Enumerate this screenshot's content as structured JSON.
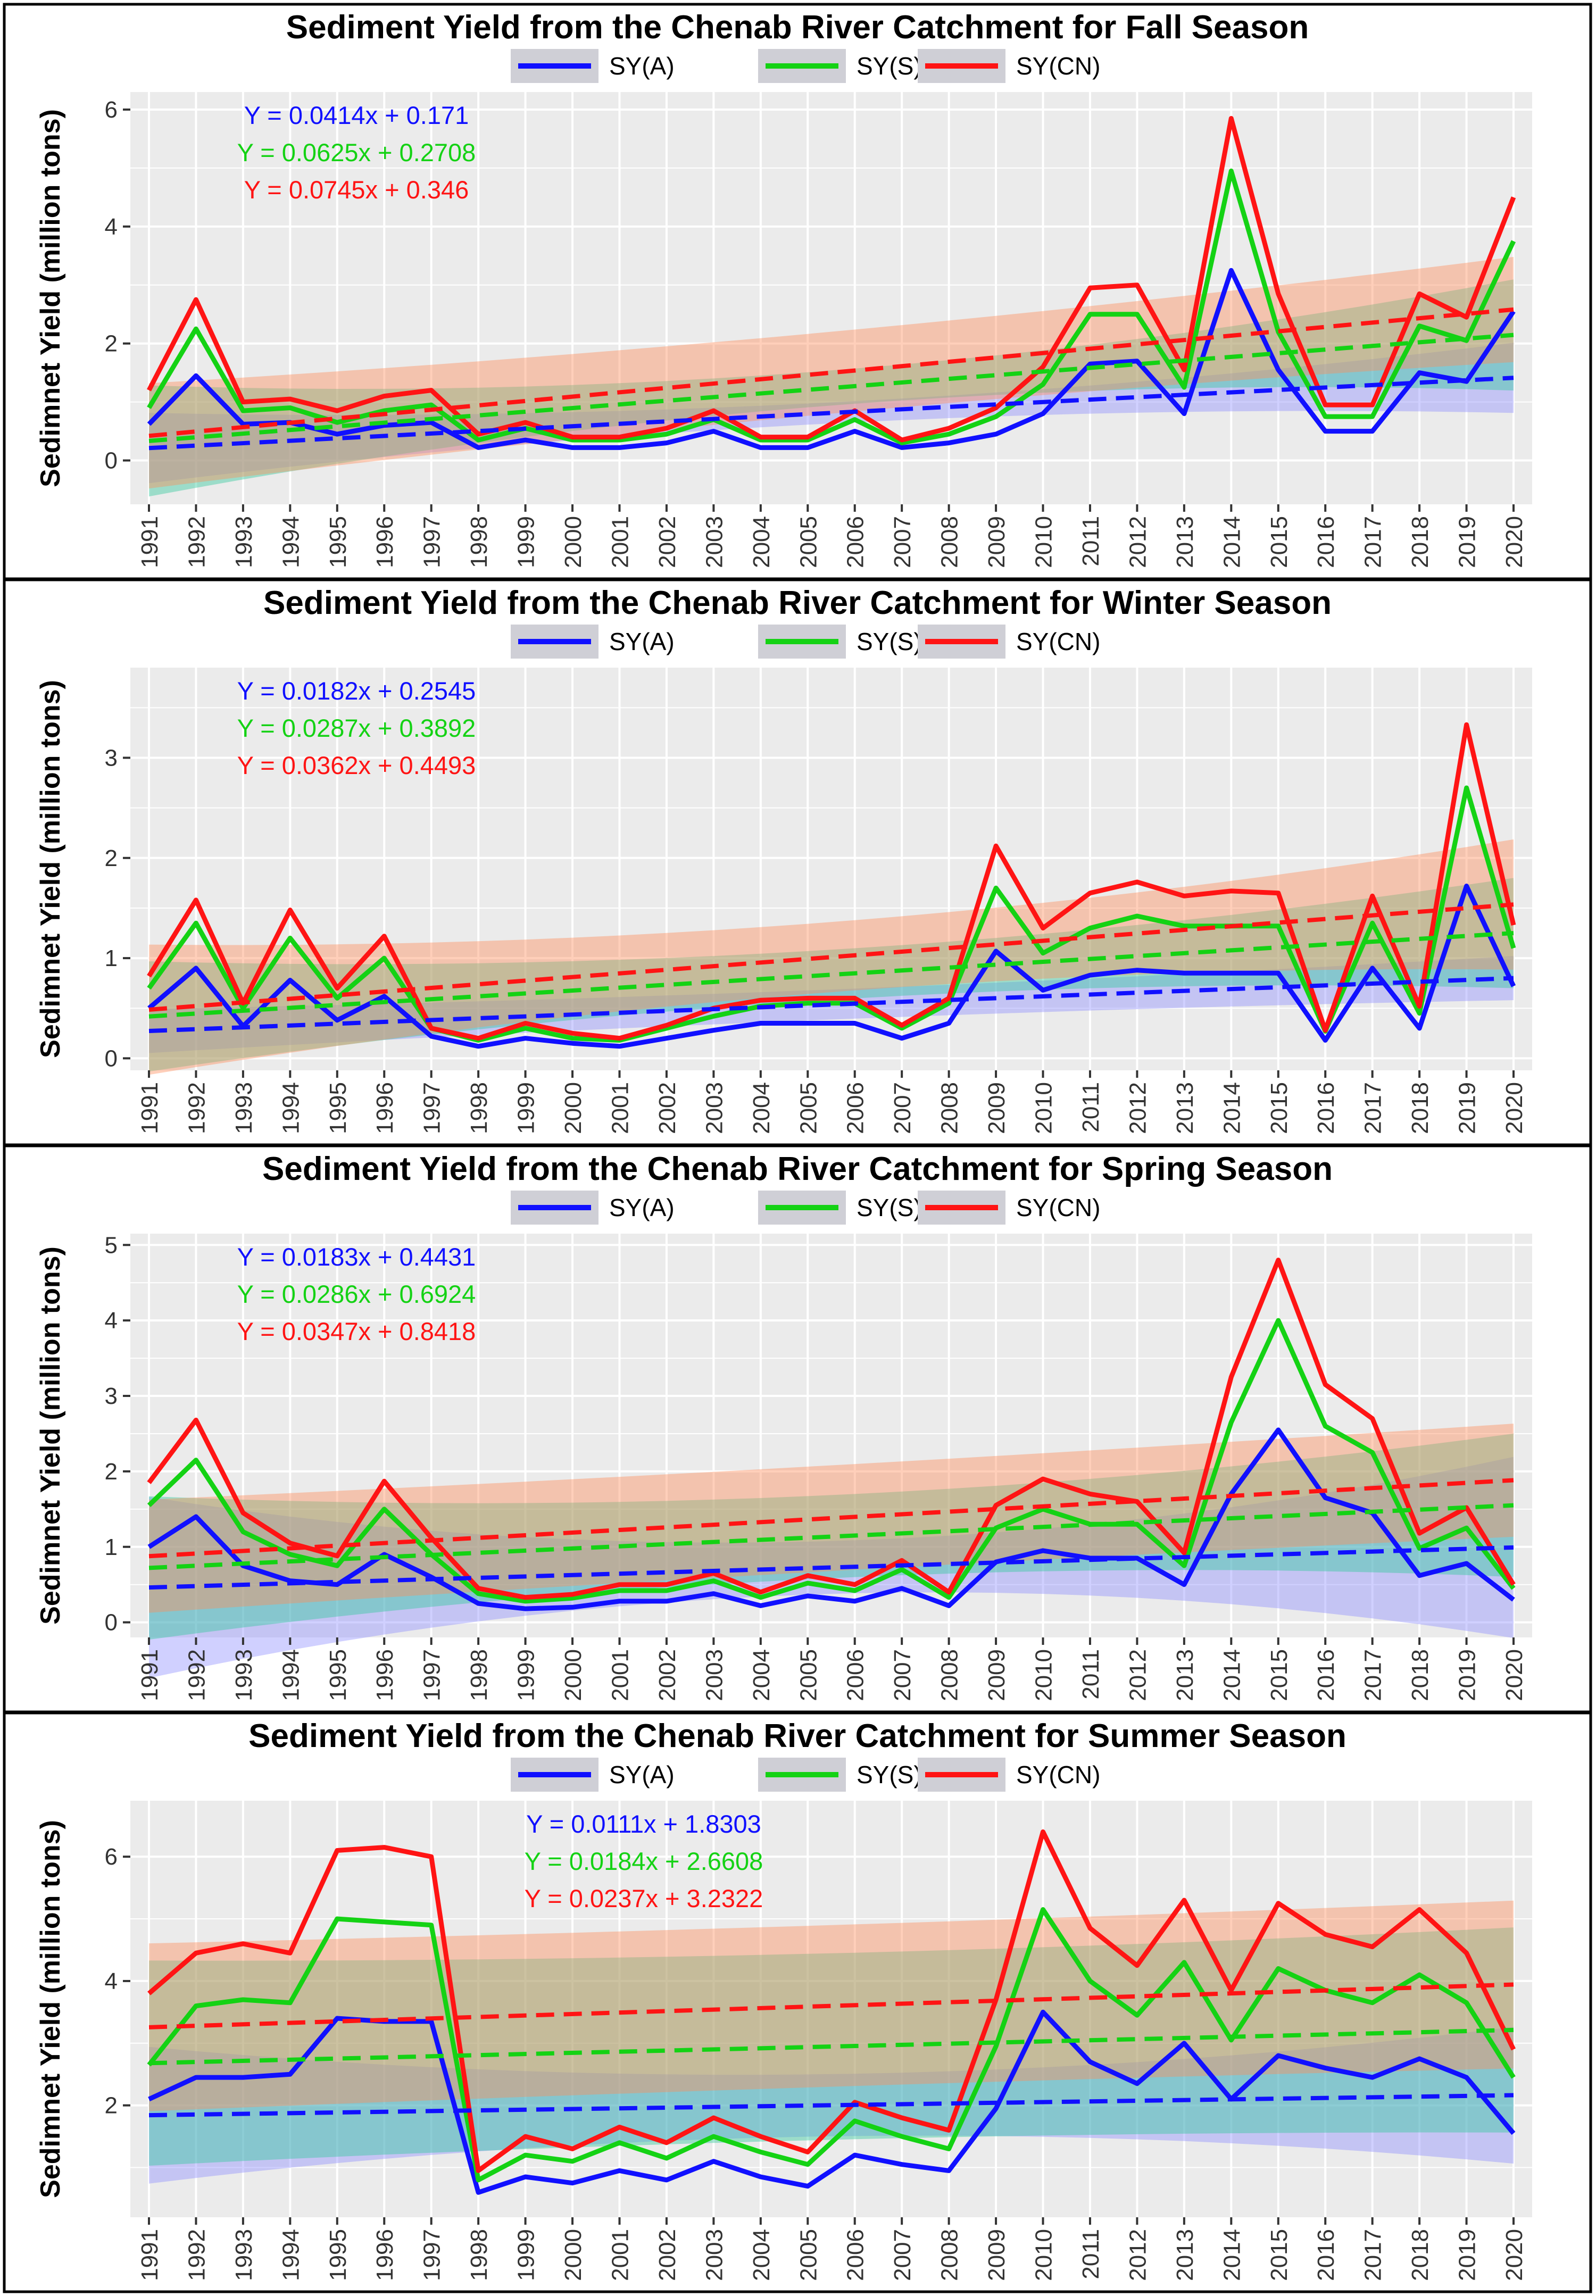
{
  "colors": {
    "A": "#1010ff",
    "S": "#14d214",
    "CN": "#ff1414",
    "band_A": "#8f8fff",
    "band_S": "#2fc79a",
    "band_CN": "#ff8c5a",
    "panel_bg": "#ebebeb",
    "grid": "#ffffff"
  },
  "chart_data": [
    {
      "type": "line",
      "title": "Sediment Yield from the Chenab River Catchment for Fall Season",
      "xlabel": "",
      "ylabel": "Sedimnet Yield (million tons)",
      "categories": [
        "1991",
        "1992",
        "1993",
        "1994",
        "1995",
        "1996",
        "1997",
        "1998",
        "1999",
        "2000",
        "2001",
        "2002",
        "2003",
        "2004",
        "2005",
        "2006",
        "2007",
        "2008",
        "2009",
        "2010",
        "2011",
        "2012",
        "2013",
        "2014",
        "2015",
        "2016",
        "2017",
        "2018",
        "2019",
        "2020"
      ],
      "ylim": [
        -0.75,
        6.3
      ],
      "yticks": [
        0,
        2,
        4,
        6
      ],
      "legend": [
        "SY(A)",
        "SY(S)",
        "SY(CN)"
      ],
      "equations": [
        {
          "key": "A",
          "text": "Y = 0.0414x + 0.171"
        },
        {
          "key": "S",
          "text": "Y = 0.0625x + 0.2708"
        },
        {
          "key": "CN",
          "text": "Y = 0.0745x + 0.346"
        }
      ],
      "series": [
        {
          "name": "SY(A)",
          "key": "A",
          "values": [
            0.62,
            1.45,
            0.62,
            0.65,
            0.45,
            0.6,
            0.65,
            0.22,
            0.35,
            0.22,
            0.22,
            0.3,
            0.5,
            0.22,
            0.22,
            0.5,
            0.22,
            0.3,
            0.45,
            0.8,
            1.65,
            1.7,
            0.8,
            3.25,
            1.55,
            0.5,
            0.5,
            1.5,
            1.35,
            2.55
          ]
        },
        {
          "name": "SY(S)",
          "key": "S",
          "values": [
            0.9,
            2.25,
            0.85,
            0.9,
            0.65,
            0.85,
            0.95,
            0.35,
            0.55,
            0.35,
            0.35,
            0.45,
            0.7,
            0.35,
            0.35,
            0.7,
            0.3,
            0.45,
            0.75,
            1.3,
            2.5,
            2.5,
            1.25,
            4.95,
            2.2,
            0.75,
            0.75,
            2.3,
            2.05,
            3.75
          ]
        },
        {
          "name": "SY(CN)",
          "key": "CN",
          "values": [
            1.2,
            2.75,
            1.0,
            1.05,
            0.85,
            1.1,
            1.2,
            0.45,
            0.65,
            0.4,
            0.4,
            0.55,
            0.85,
            0.4,
            0.4,
            0.85,
            0.35,
            0.55,
            0.9,
            1.6,
            2.95,
            3.0,
            1.55,
            5.85,
            2.85,
            0.95,
            0.95,
            2.85,
            2.45,
            4.5
          ]
        }
      ],
      "trends": [
        {
          "key": "A",
          "slope": 0.0414,
          "intercept": 0.171,
          "band": [
            0.18,
            0.6
          ]
        },
        {
          "key": "S",
          "slope": 0.0625,
          "intercept": 0.2708,
          "band": [
            0.3,
            0.95
          ]
        },
        {
          "key": "CN",
          "slope": 0.0745,
          "intercept": 0.346,
          "band": [
            0.7,
            0.9
          ]
        }
      ]
    },
    {
      "type": "line",
      "title": "Sediment Yield from the Chenab River Catchment for Winter Season",
      "xlabel": "",
      "ylabel": "Sedimnet Yield (million tons)",
      "categories": [
        "1991",
        "1992",
        "1993",
        "1994",
        "1995",
        "1996",
        "1997",
        "1998",
        "1999",
        "2000",
        "2001",
        "2002",
        "2003",
        "2004",
        "2005",
        "2006",
        "2007",
        "2008",
        "2009",
        "2010",
        "2011",
        "2012",
        "2013",
        "2014",
        "2015",
        "2016",
        "2017",
        "2018",
        "2019",
        "2020"
      ],
      "ylim": [
        -0.12,
        3.9
      ],
      "yticks": [
        0,
        1,
        2,
        3
      ],
      "legend": [
        "SY(A)",
        "SY(S)",
        "SY(CN)"
      ],
      "equations": [
        {
          "key": "A",
          "text": "Y = 0.0182x + 0.2545"
        },
        {
          "key": "S",
          "text": "Y = 0.0287x + 0.3892"
        },
        {
          "key": "CN",
          "text": "Y = 0.0362x + 0.4493"
        }
      ],
      "series": [
        {
          "name": "SY(A)",
          "key": "A",
          "values": [
            0.5,
            0.9,
            0.32,
            0.78,
            0.38,
            0.62,
            0.22,
            0.12,
            0.2,
            0.15,
            0.12,
            0.2,
            0.28,
            0.35,
            0.35,
            0.35,
            0.2,
            0.35,
            1.07,
            0.68,
            0.83,
            0.88,
            0.85,
            0.85,
            0.85,
            0.18,
            0.9,
            0.3,
            1.72,
            0.72
          ]
        },
        {
          "name": "SY(S)",
          "key": "S",
          "values": [
            0.7,
            1.35,
            0.5,
            1.2,
            0.6,
            1.0,
            0.3,
            0.18,
            0.3,
            0.2,
            0.18,
            0.3,
            0.42,
            0.52,
            0.55,
            0.55,
            0.3,
            0.55,
            1.7,
            1.05,
            1.3,
            1.42,
            1.32,
            1.32,
            1.32,
            0.27,
            1.35,
            0.45,
            2.7,
            1.1
          ]
        },
        {
          "name": "SY(CN)",
          "key": "CN",
          "values": [
            0.82,
            1.58,
            0.55,
            1.48,
            0.7,
            1.22,
            0.3,
            0.2,
            0.35,
            0.25,
            0.2,
            0.33,
            0.5,
            0.58,
            0.6,
            0.6,
            0.33,
            0.6,
            2.12,
            1.3,
            1.65,
            1.76,
            1.62,
            1.67,
            1.65,
            0.28,
            1.62,
            0.52,
            3.33,
            1.33
          ]
        }
      ],
      "trends": [
        {
          "key": "A",
          "slope": 0.0182,
          "intercept": 0.2545,
          "band": [
            0.15,
            0.22
          ]
        },
        {
          "key": "S",
          "slope": 0.0287,
          "intercept": 0.3892,
          "band": [
            0.25,
            0.55
          ]
        },
        {
          "key": "CN",
          "slope": 0.0362,
          "intercept": 0.4493,
          "band": [
            0.35,
            0.65
          ]
        }
      ]
    },
    {
      "type": "line",
      "title": "Sediment Yield from the Chenab River Catchment for Spring Season",
      "xlabel": "",
      "ylabel": "Sedimnet Yield (million tons)",
      "categories": [
        "1991",
        "1992",
        "1993",
        "1994",
        "1995",
        "1996",
        "1997",
        "1998",
        "1999",
        "2000",
        "2001",
        "2002",
        "2003",
        "2004",
        "2005",
        "2006",
        "2007",
        "2008",
        "2009",
        "2010",
        "2011",
        "2012",
        "2013",
        "2014",
        "2015",
        "2016",
        "2017",
        "2018",
        "2019",
        "2020"
      ],
      "ylim": [
        -0.2,
        5.15
      ],
      "yticks": [
        0,
        1,
        2,
        3,
        4,
        5
      ],
      "legend": [
        "SY(A)",
        "SY(S)",
        "SY(CN)"
      ],
      "equations": [
        {
          "key": "A",
          "text": "Y = 0.0183x + 0.4431"
        },
        {
          "key": "S",
          "text": "Y = 0.0286x + 0.6924"
        },
        {
          "key": "CN",
          "text": "Y = 0.0347x + 0.8418"
        }
      ],
      "series": [
        {
          "name": "SY(A)",
          "key": "A",
          "values": [
            1.0,
            1.4,
            0.75,
            0.55,
            0.5,
            0.9,
            0.6,
            0.25,
            0.18,
            0.2,
            0.28,
            0.28,
            0.38,
            0.22,
            0.35,
            0.28,
            0.45,
            0.22,
            0.8,
            0.95,
            0.85,
            0.85,
            0.5,
            1.7,
            2.55,
            1.65,
            1.45,
            0.62,
            0.78,
            0.3
          ]
        },
        {
          "name": "SY(S)",
          "key": "S",
          "values": [
            1.55,
            2.15,
            1.2,
            0.9,
            0.75,
            1.5,
            0.9,
            0.38,
            0.28,
            0.32,
            0.42,
            0.42,
            0.55,
            0.33,
            0.52,
            0.42,
            0.7,
            0.33,
            1.25,
            1.5,
            1.3,
            1.3,
            0.75,
            2.65,
            4.0,
            2.6,
            2.25,
            0.98,
            1.25,
            0.45
          ]
        },
        {
          "name": "SY(CN)",
          "key": "CN",
          "values": [
            1.85,
            2.68,
            1.45,
            1.05,
            0.88,
            1.87,
            1.12,
            0.45,
            0.33,
            0.37,
            0.5,
            0.5,
            0.65,
            0.4,
            0.62,
            0.5,
            0.82,
            0.4,
            1.55,
            1.9,
            1.7,
            1.6,
            0.92,
            3.25,
            4.8,
            3.15,
            2.7,
            1.18,
            1.52,
            0.5
          ]
        }
      ],
      "trends": [
        {
          "key": "A",
          "slope": 0.0183,
          "intercept": 0.4431,
          "band": [
            0.35,
            1.2
          ]
        },
        {
          "key": "S",
          "slope": 0.0286,
          "intercept": 0.6924,
          "band": [
            0.55,
            0.95
          ]
        },
        {
          "key": "CN",
          "slope": 0.0347,
          "intercept": 0.8418,
          "band": [
            0.7,
            0.75
          ]
        }
      ]
    },
    {
      "type": "line",
      "title": "Sediment Yield from the Chenab River Catchment for Summer Season",
      "xlabel": "",
      "ylabel": "Sedimnet Yield (million tons)",
      "categories": [
        "1991",
        "1992",
        "1993",
        "1994",
        "1995",
        "1996",
        "1997",
        "1998",
        "1999",
        "2000",
        "2001",
        "2002",
        "2003",
        "2004",
        "2005",
        "2006",
        "2007",
        "2008",
        "2009",
        "2010",
        "2011",
        "2012",
        "2013",
        "2014",
        "2015",
        "2016",
        "2017",
        "2018",
        "2019",
        "2020"
      ],
      "ylim": [
        0.2,
        6.9
      ],
      "yticks": [
        2,
        4,
        6
      ],
      "legend": [
        "SY(A)",
        "SY(S)",
        "SY(CN)"
      ],
      "equations": [
        {
          "key": "A",
          "text": "Y = 0.0111x + 1.8303"
        },
        {
          "key": "S",
          "text": "Y = 0.0184x + 2.6608"
        },
        {
          "key": "CN",
          "text": "Y = 0.0237x + 3.2322"
        }
      ],
      "series": [
        {
          "name": "SY(A)",
          "key": "A",
          "values": [
            2.1,
            2.45,
            2.45,
            2.5,
            3.4,
            3.35,
            3.35,
            0.6,
            0.85,
            0.75,
            0.95,
            0.8,
            1.1,
            0.85,
            0.7,
            1.2,
            1.05,
            0.95,
            1.95,
            3.5,
            2.7,
            2.35,
            3.0,
            2.1,
            2.8,
            2.6,
            2.45,
            2.75,
            2.45,
            1.55
          ]
        },
        {
          "name": "SY(S)",
          "key": "S",
          "values": [
            2.65,
            3.6,
            3.7,
            3.65,
            5.0,
            4.95,
            4.9,
            0.8,
            1.2,
            1.1,
            1.4,
            1.15,
            1.5,
            1.25,
            1.05,
            1.75,
            1.5,
            1.3,
            2.95,
            5.15,
            4.0,
            3.45,
            4.3,
            3.05,
            4.2,
            3.85,
            3.65,
            4.1,
            3.65,
            2.45
          ]
        },
        {
          "name": "SY(CN)",
          "key": "CN",
          "values": [
            3.8,
            4.45,
            4.6,
            4.45,
            6.1,
            6.15,
            6.0,
            0.95,
            1.5,
            1.3,
            1.65,
            1.4,
            1.8,
            1.5,
            1.25,
            2.05,
            1.8,
            1.6,
            3.7,
            6.4,
            4.85,
            4.25,
            5.3,
            3.85,
            5.25,
            4.75,
            4.55,
            5.15,
            4.45,
            2.9
          ]
        }
      ],
      "trends": [
        {
          "key": "A",
          "slope": 0.0111,
          "intercept": 1.8303,
          "band": [
            0.5,
            1.1
          ]
        },
        {
          "key": "S",
          "slope": 0.0184,
          "intercept": 2.6608,
          "band": [
            1.5,
            1.65
          ]
        },
        {
          "key": "CN",
          "slope": 0.0237,
          "intercept": 3.2322,
          "band": [
            1.3,
            1.35
          ]
        }
      ]
    }
  ]
}
